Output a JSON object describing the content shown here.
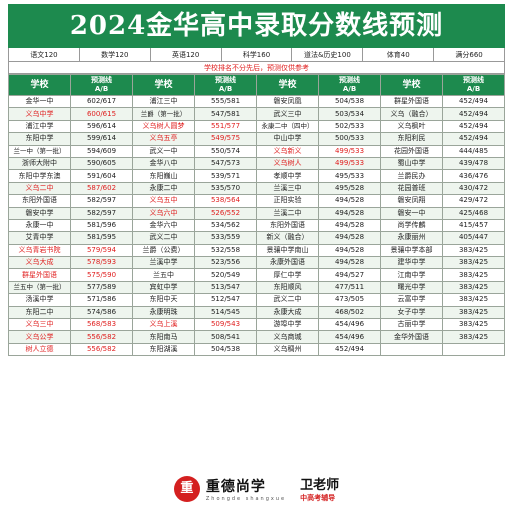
{
  "title": "2024金华高中录取分数线预测",
  "subjects": [
    "语文120",
    "数学120",
    "英语120",
    "科学160",
    "道法&历史100",
    "体育40",
    "满分660"
  ],
  "notice": "学校排名不分先后，预测仅供参考",
  "headers": [
    {
      "school": "学校",
      "line1": "预测线",
      "line2": "A/B"
    },
    {
      "school": "学校",
      "line1": "预测线",
      "line2": "A/B"
    },
    {
      "school": "学校",
      "line1": "预测线",
      "line2": "A/B"
    },
    {
      "school": "学校",
      "line1": "预测线",
      "line2": "A/B"
    }
  ],
  "rows": [
    [
      [
        "金华一中",
        "602/617"
      ],
      [
        "浦江三中",
        "555/581"
      ],
      [
        "磐安凤凰",
        "504/538"
      ],
      [
        "群星外国语",
        "452/494"
      ]
    ],
    [
      [
        "义乌中学",
        "600/615",
        1
      ],
      [
        "兰爵（第一批）",
        "547/581"
      ],
      [
        "武义三中",
        "503/534"
      ],
      [
        "义乌（融合）",
        "452/494"
      ]
    ],
    [
      [
        "浦江中学",
        "596/614"
      ],
      [
        "义乌树人圆梦",
        "551/577",
        1
      ],
      [
        "永康二中（四中）",
        "502/533"
      ],
      [
        "义乌枫叶",
        "452/494"
      ]
    ],
    [
      [
        "东阳中学",
        "599/614"
      ],
      [
        "义乌五亭",
        "549/575",
        1
      ],
      [
        "中山中学",
        "500/533"
      ],
      [
        "东阳利民",
        "452/494"
      ]
    ],
    [
      [
        "兰一中（第一批）",
        "594/609"
      ],
      [
        "武义一中",
        "550/574"
      ],
      [
        "义乌新义",
        "499/533",
        1
      ],
      [
        "花园外国语",
        "444/485"
      ]
    ],
    [
      [
        "浙师大附中",
        "590/605"
      ],
      [
        "金华八中",
        "547/573"
      ],
      [
        "义乌树人",
        "499/533",
        1
      ],
      [
        "蜀山中学",
        "439/478"
      ]
    ],
    [
      [
        "东阳中学东澳",
        "591/604"
      ],
      [
        "东阳巍山",
        "539/571"
      ],
      [
        "孝顺中学",
        "495/533"
      ],
      [
        "兰爵民办",
        "436/476"
      ]
    ],
    [
      [
        "义乌二中",
        "587/602",
        1
      ],
      [
        "永康二中",
        "535/570"
      ],
      [
        "兰溪三中",
        "495/528"
      ],
      [
        "花园普班",
        "430/472"
      ]
    ],
    [
      [
        "东阳外国语",
        "582/597"
      ],
      [
        "义乌五中",
        "538/564",
        1
      ],
      [
        "正阳实验",
        "494/528"
      ],
      [
        "磐安凤翔",
        "429/472"
      ]
    ],
    [
      [
        "磐安中学",
        "582/597"
      ],
      [
        "义乌六中",
        "526/552",
        1
      ],
      [
        "兰溪二中",
        "494/528"
      ],
      [
        "磐安一中",
        "425/468"
      ]
    ],
    [
      [
        "永康一中",
        "581/596"
      ],
      [
        "金华六中",
        "534/562"
      ],
      [
        "东阳外国语",
        "494/528"
      ],
      [
        "尚学传麟",
        "415/457"
      ]
    ],
    [
      [
        "艾青中学",
        "581/595"
      ],
      [
        "武义二中",
        "533/559"
      ],
      [
        "新义（融合）",
        "494/528"
      ],
      [
        "永康丽州",
        "405/447"
      ]
    ],
    [
      [
        "义乌青岩书院",
        "579/594",
        1
      ],
      [
        "兰爵（公费）",
        "532/558"
      ],
      [
        "景骧中学南山",
        "494/528"
      ],
      [
        "景骧中学本部",
        "383/425"
      ]
    ],
    [
      [
        "义乌大成",
        "578/593",
        1
      ],
      [
        "兰溪中学",
        "523/556"
      ],
      [
        "永康外国语",
        "494/528"
      ],
      [
        "建华中学",
        "383/425"
      ]
    ],
    [
      [
        "群星外国语",
        "575/590",
        1
      ],
      [
        "兰五中",
        "520/549"
      ],
      [
        "厚仁中学",
        "494/527"
      ],
      [
        "江南中学",
        "383/425"
      ]
    ],
    [
      [
        "兰五中（第一批）",
        "577/589"
      ],
      [
        "宾虹中学",
        "513/547"
      ],
      [
        "东阳顺风",
        "477/511"
      ],
      [
        "曙光中学",
        "383/425"
      ]
    ],
    [
      [
        "汤溪中学",
        "571/586"
      ],
      [
        "东阳中天",
        "512/547"
      ],
      [
        "武义二中",
        "473/505"
      ],
      [
        "云富中学",
        "383/425"
      ]
    ],
    [
      [
        "东阳二中",
        "574/586"
      ],
      [
        "永康明珠",
        "514/545"
      ],
      [
        "永康大成",
        "468/502"
      ],
      [
        "女子中学",
        "383/425"
      ]
    ],
    [
      [
        "义乌三中",
        "568/583",
        1
      ],
      [
        "义乌上溪",
        "509/543",
        1
      ],
      [
        "游埠中学",
        "454/496"
      ],
      [
        "古丽中学",
        "383/425"
      ]
    ],
    [
      [
        "义乌公学",
        "556/582",
        1
      ],
      [
        "东阳南马",
        "508/541"
      ],
      [
        "义乌商城",
        "454/496"
      ],
      [
        "金华外国语",
        "383/425"
      ]
    ],
    [
      [
        "树人立德",
        "556/582",
        1
      ],
      [
        "东阳湖溪",
        "504/538"
      ],
      [
        "义乌稠州",
        "452/494"
      ],
      [
        "",
        ""
      ]
    ]
  ],
  "footer": {
    "logo_glyph": "重",
    "brand": "重德尚学",
    "brand_sub": "Zhongde  shangxue",
    "teacher": "卫老师",
    "teacher_sub": "中高考辅导"
  }
}
